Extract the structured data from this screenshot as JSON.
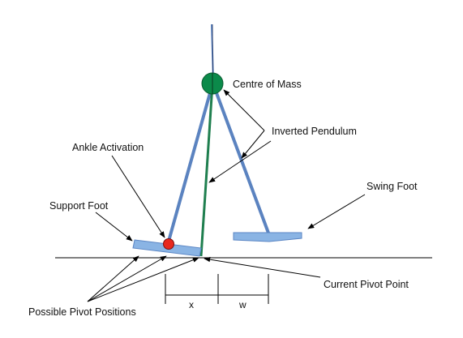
{
  "labels": {
    "centre_of_mass": "Centre of Mass",
    "inverted_pendulum": "Inverted Pendulum",
    "ankle_activation": "Ankle Activation",
    "support_foot": "Support Foot",
    "swing_foot": "Swing Foot",
    "current_pivot_point": "Current Pivot Point",
    "possible_pivot_positions": "Possible Pivot Positions",
    "x": "x",
    "w": "w"
  },
  "colors": {
    "leg_blue": "#5b83c0",
    "foot_blue": "#8ab4e4",
    "foot_edge": "#5b86c4",
    "pendulum_green": "#1f7f4f",
    "com_green": "#0b8a4a",
    "ankle_red": "#e8281e",
    "line_black": "#000000"
  }
}
